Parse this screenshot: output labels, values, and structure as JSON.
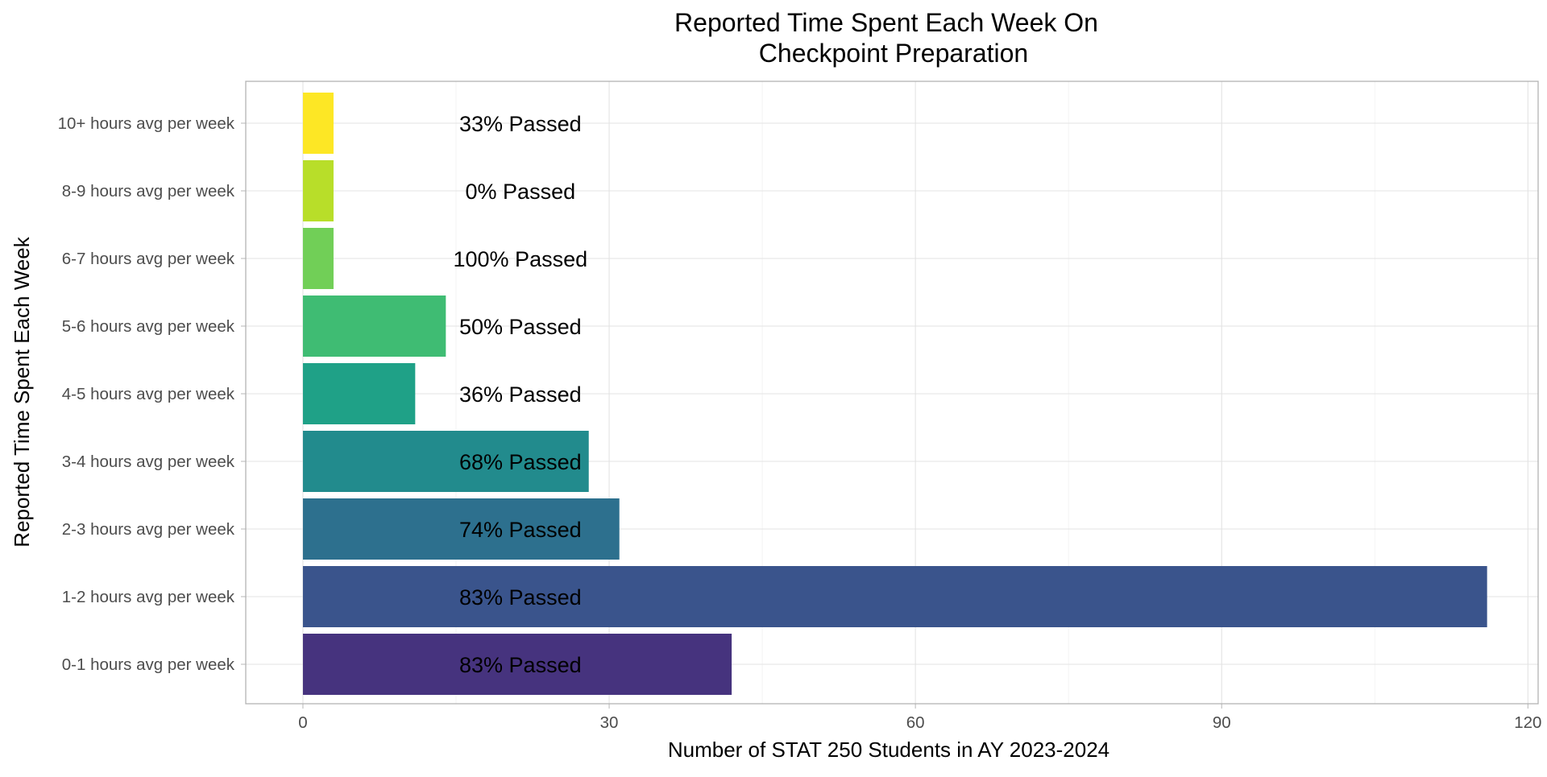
{
  "chart_data": {
    "type": "bar",
    "orientation": "horizontal",
    "title_lines": [
      "Reported Time Spent Each Week On",
      "Checkpoint Preparation"
    ],
    "xlabel": "Number of STAT 250 Students in AY 2023-2024",
    "ylabel": "Reported Time Spent Each Week",
    "xlim": [
      -5.6,
      121
    ],
    "xticks": [
      0,
      30,
      60,
      90,
      120
    ],
    "xtick_labels": [
      "0",
      "30",
      "60",
      "90",
      "120"
    ],
    "grid": true,
    "legend": "none",
    "categories": [
      "0-1 hours avg per week",
      "1-2 hours avg per week",
      "2-3 hours avg per week",
      "3-4 hours avg per week",
      "4-5 hours avg per week",
      "5-6 hours avg per week",
      "6-7 hours avg per week",
      "8-9 hours avg per week",
      "10+ hours avg per week"
    ],
    "values": [
      42,
      116,
      31,
      28,
      11,
      14,
      3,
      3,
      3
    ],
    "data_labels": [
      "83% Passed",
      "83% Passed",
      "74% Passed",
      "68% Passed",
      "36% Passed",
      "50% Passed",
      "100% Passed",
      "0% Passed",
      "33% Passed"
    ],
    "colors": [
      "#46337E",
      "#3A548C",
      "#2D708E",
      "#228B8D",
      "#1FA187",
      "#3FBC73",
      "#71CF57",
      "#B8DE29",
      "#FDE725"
    ]
  }
}
